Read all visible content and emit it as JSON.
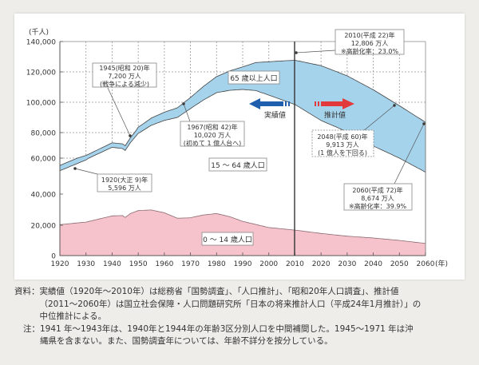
{
  "chart_data": {
    "type": "area",
    "title": "",
    "xlabel": "(年)",
    "ylabel": "(千人)",
    "x_ticks": [
      "1920",
      "1930",
      "1940",
      "1950",
      "1960",
      "1970",
      "1980",
      "1990",
      "2000",
      "2010",
      "2020",
      "2030",
      "2040",
      "2050",
      "2060"
    ],
    "y_ticks": [
      "0",
      "20,000",
      "40,000",
      "60,000",
      "80,000",
      "100,000",
      "120,000",
      "140,000"
    ],
    "ylim": [
      0,
      140000
    ],
    "y_axis_note": "non-linear scale (compressed between 40,000 and 60,000)",
    "grid": "dotted",
    "divider_year": 2010,
    "series": [
      {
        "name": "0〜14歳人口",
        "color": "#f6c3cc",
        "x": [
          1920,
          1930,
          1940,
          1944,
          1945,
          1947,
          1950,
          1955,
          1960,
          1965,
          1970,
          1975,
          1980,
          1985,
          1990,
          2000,
          2010,
          2020,
          2030,
          2040,
          2050,
          2060
        ],
        "values": [
          20400,
          22000,
          26000,
          26200,
          25000,
          27500,
          29400,
          29800,
          28000,
          24500,
          24800,
          26600,
          27500,
          25500,
          22500,
          18500,
          16800,
          14600,
          12800,
          11600,
          10000,
          8000
        ]
      },
      {
        "name": "15〜64歳人口",
        "color": "#ffffff",
        "x": [
          1920,
          1930,
          1940,
          1945,
          1950,
          1960,
          1970,
          1980,
          1990,
          1995,
          2000,
          2010,
          2020,
          2030,
          2040,
          2050,
          2060
        ],
        "values": [
          32600,
          37000,
          42500,
          41000,
          50000,
          60000,
          71000,
          78800,
          85900,
          87200,
          86200,
          81700,
          73400,
          67700,
          57900,
          50000,
          44200
        ]
      },
      {
        "name": "65歳以上人口",
        "color": "#a6d3ec",
        "x": [
          1920,
          1930,
          1940,
          1945,
          1950,
          1960,
          1970,
          1980,
          1990,
          2000,
          2010,
          2020,
          2030,
          2040,
          2050,
          2060
        ],
        "values": [
          2900,
          3100,
          3500,
          3700,
          4100,
          5400,
          7300,
          10600,
          14900,
          22000,
          29200,
          36100,
          36900,
          38700,
          37700,
          34600
        ]
      }
    ],
    "totals": [
      {
        "year": 1920,
        "value": 55960
      },
      {
        "year": 1945,
        "value": 72000
      },
      {
        "year": 1967,
        "value": 100200
      },
      {
        "year": 2010,
        "value": 128060
      },
      {
        "year": 2048,
        "value": 99130
      },
      {
        "year": 2060,
        "value": 86740
      }
    ],
    "annotations": [
      {
        "lines": [
          "1945(昭和 20)年",
          "7,200 万人",
          "(戦争による減少)"
        ]
      },
      {
        "lines": [
          "1920(大正 9)年",
          "5,596 万人"
        ]
      },
      {
        "lines": [
          "1967(昭和 42)年",
          "10,020 万人",
          "(初めて 1 億人台へ)"
        ]
      },
      {
        "lines": [
          "2010(平成 22)年",
          "12,806 万人",
          "※高齢化率：23.0%"
        ]
      },
      {
        "lines": [
          "2048(平成 60)年",
          "9,913 万人",
          "(1 億人を下回る)"
        ]
      },
      {
        "lines": [
          "2060(平成 72)年",
          "8,674 万人",
          "※高齢化率：39.9%"
        ]
      }
    ],
    "region_labels": {
      "elderly": "65 歳以上人口",
      "working": "15 〜 64 歳人口",
      "children": "0 〜 14 歳人口"
    },
    "arrows": {
      "actual": "実績値",
      "projected": "推計値",
      "actual_color": "#1f5fae",
      "projected_color": "#e23a3a"
    }
  },
  "notes": {
    "source_label": "資料：",
    "source_lines": [
      "実績値（1920年〜2010年）は総務省「国勢調査」、「人口推計」、「昭和20年人口調査」、推計値",
      "（2011〜2060年）は国立社会保障・人口問題研究所「日本の将来推計人口（平成24年1月推計）」の",
      "中位推計による。"
    ],
    "note_label": "注：",
    "note_lines": [
      "1941 年〜1943年は、1940年と1944年の年齢3区分別人口を中間補間した。1945〜1971 年は沖",
      "縄県を含まない。また、国勢調査年については、年齢不詳分を按分している。"
    ]
  }
}
